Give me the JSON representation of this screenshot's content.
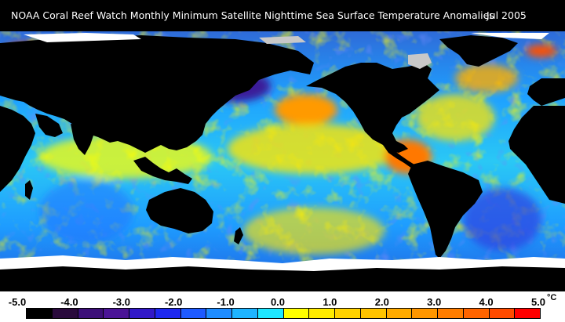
{
  "header": {
    "title": "NOAA Coral Reef Watch Monthly Minimum Satellite Nighttime Sea Surface Temperature Anomalies",
    "date": "Jul 2005"
  },
  "map": {
    "projection": "equirectangular global",
    "colors": {
      "land": "#000000",
      "ice": "#ffffff",
      "no_data": "#c8c8c8"
    }
  },
  "legend": {
    "unit": "°C",
    "ticks": [
      "-5.0",
      "-4.0",
      "-3.0",
      "-2.0",
      "-1.0",
      "0.0",
      "1.0",
      "2.0",
      "3.0",
      "4.0",
      "5.0"
    ],
    "colors": [
      "#000000",
      "#2a0a3c",
      "#3c0f78",
      "#4b1496",
      "#3219c8",
      "#1e28f0",
      "#1e5aff",
      "#1e8cff",
      "#1eb4ff",
      "#1ee6ff",
      "#ffff00",
      "#ffeb00",
      "#ffd200",
      "#ffc300",
      "#ffaa00",
      "#ff9600",
      "#ff7d00",
      "#ff6400",
      "#ff4b00",
      "#ff0000"
    ]
  }
}
